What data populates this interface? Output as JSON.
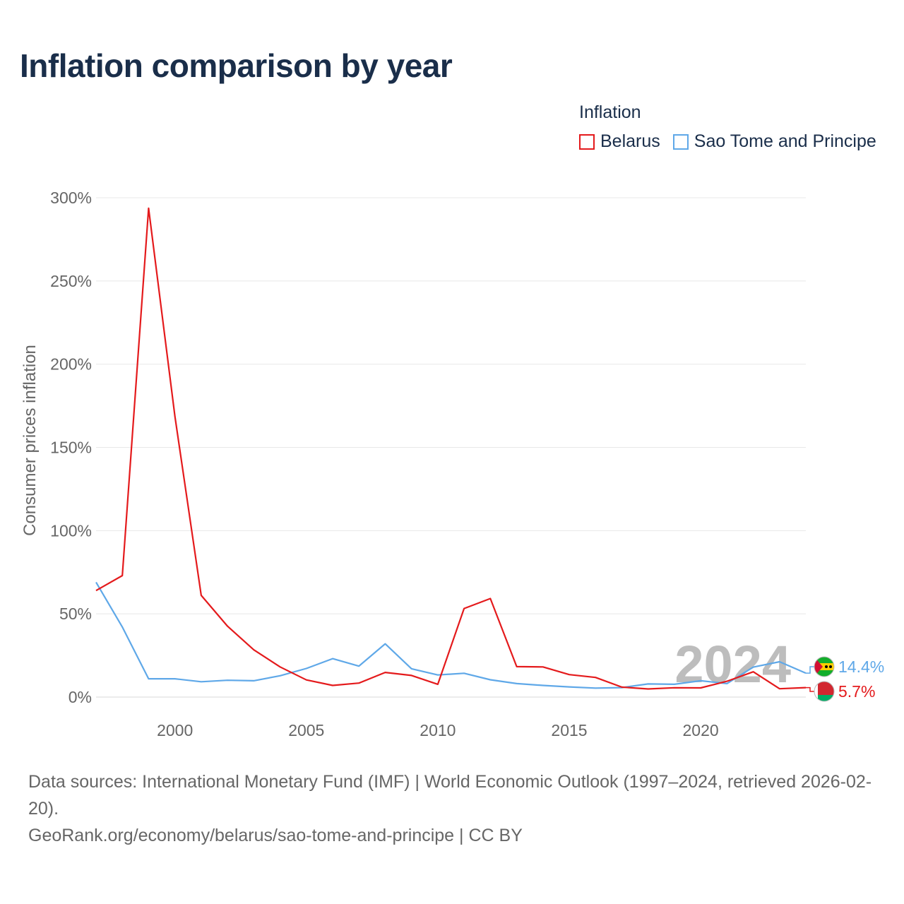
{
  "page": {
    "title": "Inflation comparison by year",
    "legend_title": "Inflation",
    "footer_line1": "Data sources: International Monetary Fund (IMF) | World Economic Outlook (1997–2024, retrieved 2026-02-20).",
    "footer_line2": "GeoRank.org/economy/belarus/sao-tome-and-principe | CC BY"
  },
  "chart_data": {
    "type": "line",
    "title": "Inflation comparison by year",
    "xlabel": "",
    "ylabel": "Consumer prices inflation",
    "xlim": [
      1997,
      2024
    ],
    "ylim": [
      0,
      300
    ],
    "x_ticks": [
      2000,
      2005,
      2010,
      2015,
      2020
    ],
    "y_ticks": [
      0,
      50,
      100,
      150,
      200,
      250,
      300
    ],
    "y_tick_labels": [
      "0%",
      "50%",
      "100%",
      "150%",
      "200%",
      "250%",
      "300%"
    ],
    "grid": true,
    "legend_position": "top-right",
    "current_year_label": "2024",
    "x": [
      1997,
      1998,
      1999,
      2000,
      2001,
      2002,
      2003,
      2004,
      2005,
      2006,
      2007,
      2008,
      2009,
      2010,
      2011,
      2012,
      2013,
      2014,
      2015,
      2016,
      2017,
      2018,
      2019,
      2020,
      2021,
      2022,
      2023,
      2024
    ],
    "series": [
      {
        "name": "Belarus",
        "color": "#e41a1c",
        "flag_icon": "belarus-flag-icon",
        "end_label": "5.7%",
        "values": [
          64,
          73,
          293.7,
          168.6,
          61.1,
          42.6,
          28.4,
          18.1,
          10.3,
          7.0,
          8.4,
          14.8,
          13.0,
          7.7,
          53.2,
          59.2,
          18.3,
          18.1,
          13.5,
          11.8,
          6.0,
          4.9,
          5.6,
          5.5,
          9.5,
          15.2,
          5.0,
          5.7
        ]
      },
      {
        "name": "Sao Tome and Principe",
        "color": "#5fa8e8",
        "flag_icon": "sao-tome-flag-icon",
        "end_label": "14.4%",
        "values": [
          69,
          42.1,
          11.0,
          11.0,
          9.2,
          10.1,
          9.8,
          12.8,
          17.2,
          23.1,
          18.6,
          32.0,
          17.0,
          13.3,
          14.3,
          10.4,
          8.1,
          7.0,
          6.1,
          5.4,
          5.7,
          7.9,
          7.7,
          9.8,
          8.1,
          18.0,
          21.2,
          14.4
        ]
      }
    ]
  }
}
